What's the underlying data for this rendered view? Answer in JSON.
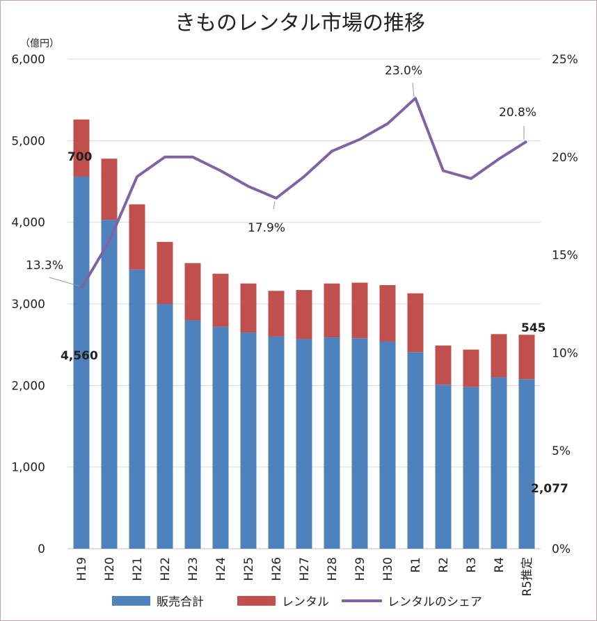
{
  "chart_data": {
    "type": "bar",
    "stacked": true,
    "title": "きものレンタル市場の推移",
    "y_unit": "（億円）",
    "categories": [
      "H19",
      "H20",
      "H21",
      "H22",
      "H23",
      "H24",
      "H25",
      "H26",
      "H27",
      "H28",
      "H29",
      "H30",
      "R1",
      "R2",
      "R3",
      "R4",
      "R5推定"
    ],
    "series": [
      {
        "name": "販売合計",
        "type": "bar",
        "axis": "left",
        "color": "#4f81bd",
        "values": [
          4560,
          4030,
          3420,
          3000,
          2800,
          2720,
          2650,
          2600,
          2570,
          2590,
          2580,
          2540,
          2410,
          2010,
          1980,
          2100,
          2077
        ]
      },
      {
        "name": "レンタル",
        "type": "bar",
        "axis": "left",
        "color": "#c0504d",
        "values": [
          700,
          750,
          800,
          760,
          700,
          650,
          600,
          560,
          600,
          660,
          680,
          690,
          720,
          480,
          460,
          530,
          545
        ]
      },
      {
        "name": "レンタルのシェア",
        "type": "line",
        "axis": "right",
        "color": "#8064a2",
        "values": [
          13.3,
          15.7,
          19.0,
          20.0,
          20.0,
          19.3,
          18.5,
          17.9,
          19.0,
          20.3,
          20.9,
          21.7,
          23.0,
          19.3,
          18.9,
          19.9,
          20.8
        ]
      }
    ],
    "y_left": {
      "min": 0,
      "max": 6000,
      "ticks": [
        "0",
        "1,000",
        "2,000",
        "3,000",
        "4,000",
        "5,000",
        "6,000"
      ]
    },
    "y_right": {
      "min": 0,
      "max": 25,
      "ticks": [
        "0%",
        "5%",
        "10%",
        "15%",
        "20%",
        "25%"
      ]
    },
    "grid": true,
    "legend_position": "bottom",
    "data_labels": {
      "h19_rental": "700",
      "h19_sales": "4,560",
      "r5_rental": "545",
      "r5_sales": "2,077",
      "h19_share": "13.3%",
      "h26_share": "17.9%",
      "r1_share": "23.0%",
      "r5_share": "20.8%"
    }
  }
}
